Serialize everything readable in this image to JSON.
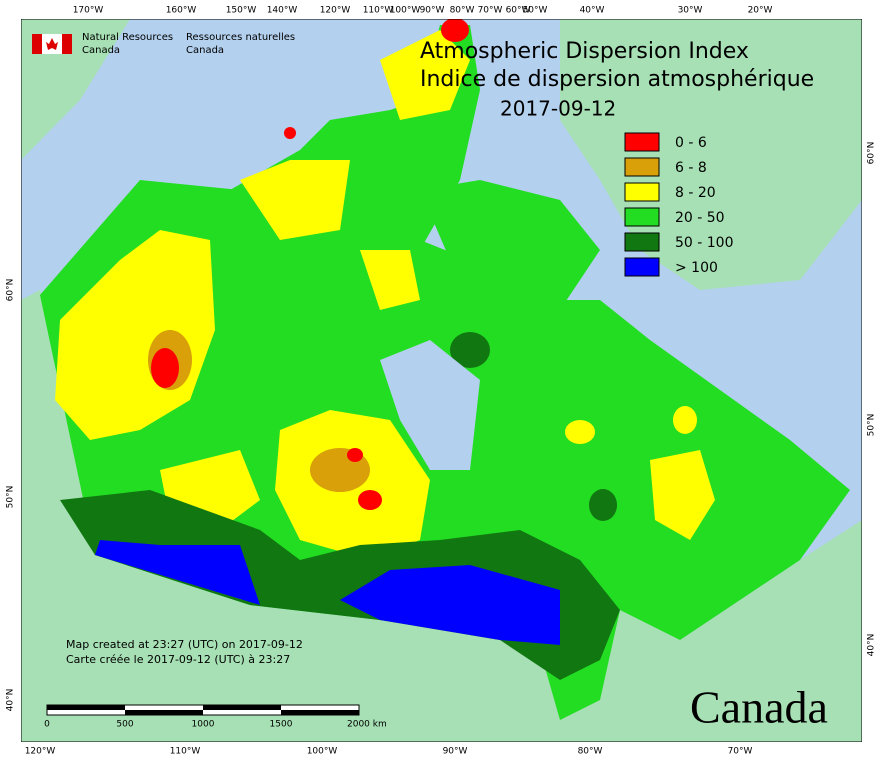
{
  "header": {
    "agency_en": [
      "Natural Resources",
      "Canada"
    ],
    "agency_fr": [
      "Ressources naturelles",
      "Canada"
    ]
  },
  "title": [
    "Atmospheric Dispersion Index",
    "Indice de dispersion atmosphérique"
  ],
  "date": "2017-09-12",
  "legend": [
    {
      "label": "0 - 6",
      "color": "#ff0000"
    },
    {
      "label": "6 - 8",
      "color": "#d9a00a"
    },
    {
      "label": "8 - 20",
      "color": "#ffff00"
    },
    {
      "label": "20 - 50",
      "color": "#22dd22"
    },
    {
      "label": "50 - 100",
      "color": "#117711"
    },
    {
      "label": "> 100",
      "color": "#0000ff"
    }
  ],
  "top_longitudes": [
    "170°W",
    "160°W",
    "150°W",
    "140°W",
    "120°W",
    "110°W",
    "100°W",
    "90°W",
    "80°W",
    "70°W",
    "60°W",
    "50°W",
    "40°W",
    "30°W",
    "20°W"
  ],
  "bottom_longitudes": [
    "120°W",
    "110°W",
    "100°W",
    "90°W",
    "80°W",
    "70°W"
  ],
  "left_latitudes": [
    "60°N",
    "50°N",
    "40°N"
  ],
  "right_latitudes": [
    "60°N",
    "50°N",
    "40°N"
  ],
  "notes": [
    "Map created at 23:27 (UTC) on 2017-09-12",
    "Carte créée le 2017-09-12 (UTC) à 23:27"
  ],
  "scale_labels": [
    "0",
    "500",
    "1000",
    "1500",
    "2000 km"
  ],
  "wordmark": "Canada"
}
